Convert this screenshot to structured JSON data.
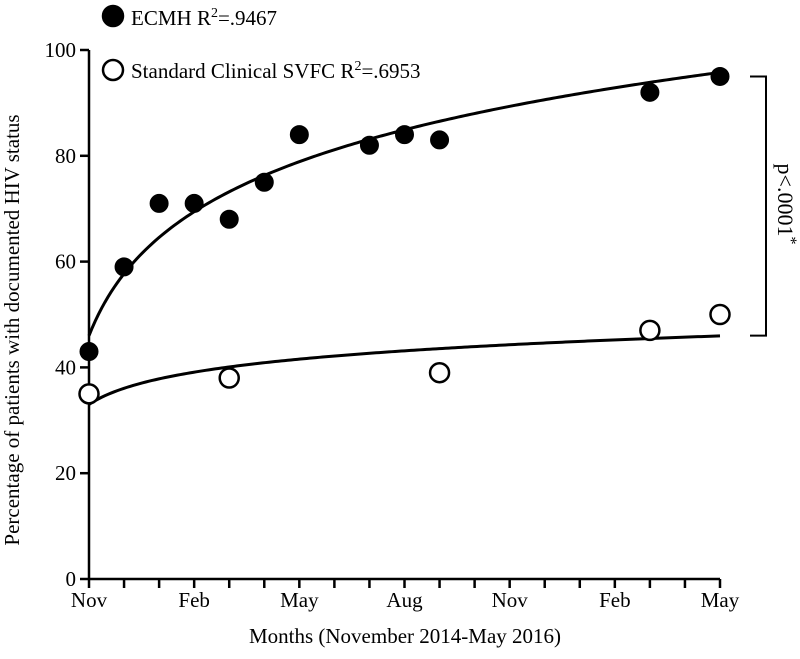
{
  "chart_data": {
    "type": "scatter",
    "xlabel": "Months (November 2014-May 2016)",
    "ylabel": "Percentage of patients with documented HIV status",
    "ylim": [
      0,
      100
    ],
    "xlim": [
      0,
      18
    ],
    "y_ticks": [
      0,
      20,
      40,
      60,
      80,
      100
    ],
    "x_tick_labels": [
      {
        "x": 0,
        "label": "Nov"
      },
      {
        "x": 3,
        "label": "Feb"
      },
      {
        "x": 6,
        "label": "May"
      },
      {
        "x": 9,
        "label": "Aug"
      },
      {
        "x": 12,
        "label": "Nov"
      },
      {
        "x": 15,
        "label": "Feb"
      },
      {
        "x": 18,
        "label": "May"
      }
    ],
    "grid": false,
    "legend_position": "top-left",
    "series": [
      {
        "name": "ECMH",
        "r2_label": ".9467",
        "marker": "filled-circle",
        "points": [
          {
            "x": 0,
            "y": 43
          },
          {
            "x": 1,
            "y": 59
          },
          {
            "x": 2,
            "y": 71
          },
          {
            "x": 3,
            "y": 71
          },
          {
            "x": 4,
            "y": 68
          },
          {
            "x": 5,
            "y": 75
          },
          {
            "x": 6,
            "y": 84
          },
          {
            "x": 8,
            "y": 82
          },
          {
            "x": 9,
            "y": 84
          },
          {
            "x": 10,
            "y": 83
          },
          {
            "x": 16,
            "y": 92
          },
          {
            "x": 18,
            "y": 95
          }
        ],
        "fit": {
          "type": "log",
          "a": 46,
          "b": 16.9
        }
      },
      {
        "name": "Standard Clinical SVFC",
        "r2_label": ".6953",
        "marker": "open-circle",
        "points": [
          {
            "x": 0,
            "y": 35
          },
          {
            "x": 4,
            "y": 38
          },
          {
            "x": 10,
            "y": 39
          },
          {
            "x": 16,
            "y": 47
          },
          {
            "x": 18,
            "y": 50
          }
        ],
        "fit": {
          "type": "log",
          "a": 33,
          "b": 4.4
        }
      }
    ],
    "annotation": {
      "text": "p<.0001",
      "superscript": "*",
      "bracket_y": [
        95,
        46
      ]
    }
  }
}
